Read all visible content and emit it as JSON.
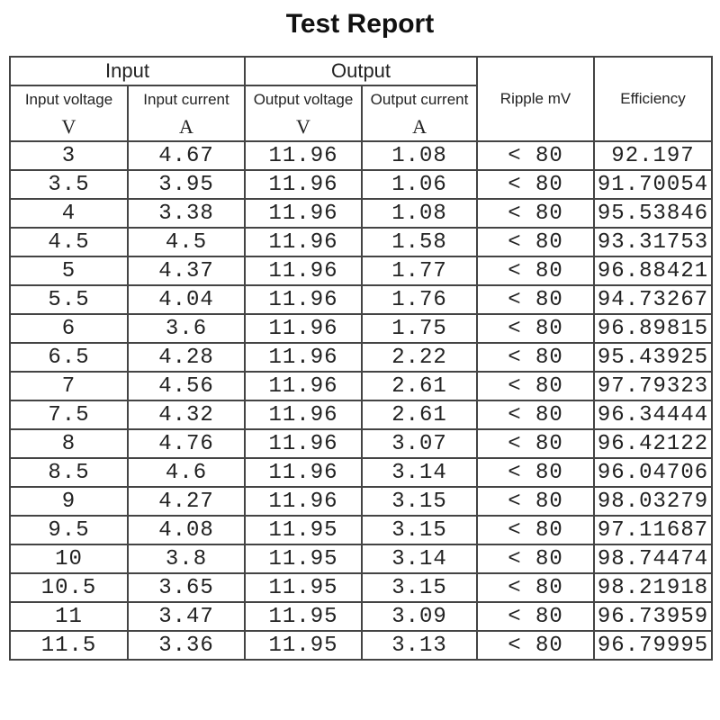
{
  "header": {
    "title": "Test Report"
  },
  "table": {
    "groups": [
      "Input",
      "Output"
    ],
    "columns": [
      "Input voltage",
      "Input current",
      "Output voltage",
      "Output current",
      "Ripple mV",
      "Efficiency"
    ],
    "units": [
      "V",
      "A",
      "V",
      "A"
    ],
    "rows": [
      [
        "3",
        "4.67",
        "11.96",
        "1.08",
        "< 80",
        "92.197"
      ],
      [
        "3.5",
        "3.95",
        "11.96",
        "1.06",
        "< 80",
        "91.70054"
      ],
      [
        "4",
        "3.38",
        "11.96",
        "1.08",
        "< 80",
        "95.53846"
      ],
      [
        "4.5",
        "4.5",
        "11.96",
        "1.58",
        "< 80",
        "93.31753"
      ],
      [
        "5",
        "4.37",
        "11.96",
        "1.77",
        "< 80",
        "96.88421"
      ],
      [
        "5.5",
        "4.04",
        "11.96",
        "1.76",
        "< 80",
        "94.73267"
      ],
      [
        "6",
        "3.6",
        "11.96",
        "1.75",
        "< 80",
        "96.89815"
      ],
      [
        "6.5",
        "4.28",
        "11.96",
        "2.22",
        "< 80",
        "95.43925"
      ],
      [
        "7",
        "4.56",
        "11.96",
        "2.61",
        "< 80",
        "97.79323"
      ],
      [
        "7.5",
        "4.32",
        "11.96",
        "2.61",
        "< 80",
        "96.34444"
      ],
      [
        "8",
        "4.76",
        "11.96",
        "3.07",
        "< 80",
        "96.42122"
      ],
      [
        "8.5",
        "4.6",
        "11.96",
        "3.14",
        "< 80",
        "96.04706"
      ],
      [
        "9",
        "4.27",
        "11.96",
        "3.15",
        "< 80",
        "98.03279"
      ],
      [
        "9.5",
        "4.08",
        "11.95",
        "3.15",
        "< 80",
        "97.11687"
      ],
      [
        "10",
        "3.8",
        "11.95",
        "3.14",
        "< 80",
        "98.74474"
      ],
      [
        "10.5",
        "3.65",
        "11.95",
        "3.15",
        "< 80",
        "98.21918"
      ],
      [
        "11",
        "3.47",
        "11.95",
        "3.09",
        "< 80",
        "96.73959"
      ],
      [
        "11.5",
        "3.36",
        "11.95",
        "3.13",
        "< 80",
        "96.79995"
      ]
    ]
  }
}
